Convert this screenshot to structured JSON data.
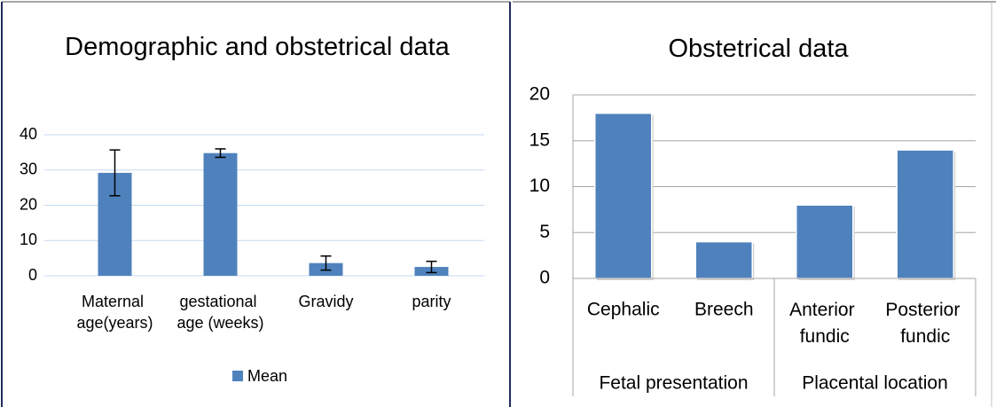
{
  "chart_data": [
    {
      "type": "bar",
      "title": "Demographic and obstetrical data",
      "categories": [
        "Maternal age(years)",
        "gestational age (weeks)",
        "Gravidy",
        "parity"
      ],
      "series": [
        {
          "name": "Mean",
          "color": "#4f81bd",
          "values": [
            29.2,
            34.8,
            3.6,
            2.5
          ],
          "errors": [
            6.5,
            1.2,
            2.0,
            1.6
          ]
        }
      ],
      "ylim": [
        0,
        40
      ],
      "yticks": [
        0,
        10,
        20,
        30,
        40
      ],
      "grid": true,
      "legend": "bottom"
    },
    {
      "type": "bar",
      "title": "Obstetrical data",
      "categories": [
        "Cephalic",
        "Breech",
        "Anterior fundic",
        "Posterior fundic"
      ],
      "category_groups": [
        "Fetal presentation",
        "Fetal presentation",
        "Placental location",
        "Placental location"
      ],
      "series": [
        {
          "name": null,
          "color": "#4f81bd",
          "values": [
            18,
            4,
            8,
            14
          ]
        }
      ],
      "ylim": [
        0,
        20
      ],
      "yticks": [
        0,
        5,
        10,
        15,
        20
      ],
      "grid": true
    }
  ]
}
